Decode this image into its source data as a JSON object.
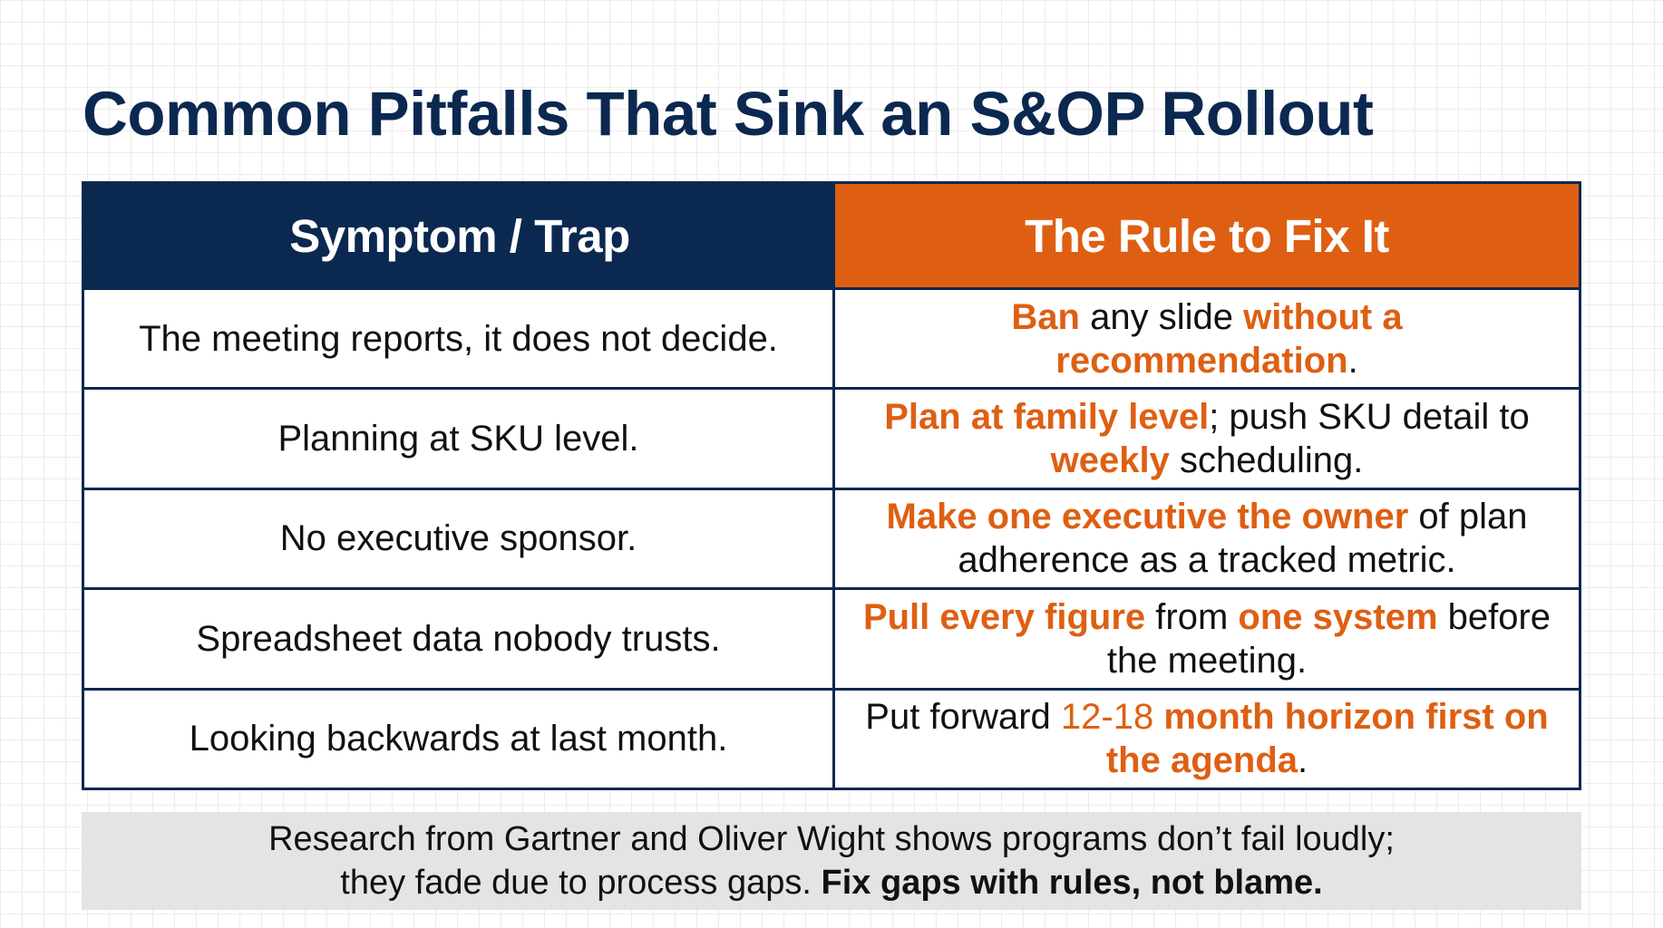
{
  "title": "Common Pitfalls That Sink an S&OP Rollout",
  "colors": {
    "navy": "#0b2850",
    "orange": "#de5f12",
    "note_bg": "#e4e4e4"
  },
  "table": {
    "headers": {
      "symptom": "Symptom / Trap",
      "rule": "The Rule to Fix It"
    },
    "rows": [
      {
        "symptom": "The meeting reports, it does not decide.",
        "rule": [
          {
            "text": "Ban",
            "highlight": true
          },
          {
            "text": " any slide ",
            "highlight": false
          },
          {
            "text": "without a recommendation",
            "highlight": true
          },
          {
            "text": ".",
            "highlight": false
          }
        ]
      },
      {
        "symptom": "Planning at SKU level.",
        "rule": [
          {
            "text": "Plan at family level",
            "highlight": true
          },
          {
            "text": "; push SKU detail to ",
            "highlight": false
          },
          {
            "text": "weekly",
            "highlight": true
          },
          {
            "text": " scheduling.",
            "highlight": false
          }
        ]
      },
      {
        "symptom": "No executive sponsor.",
        "rule": [
          {
            "text": "Make one executive the owner",
            "highlight": true
          },
          {
            "text": " of plan adherence as a tracked metric.",
            "highlight": false
          }
        ]
      },
      {
        "symptom": "Spreadsheet data nobody trusts.",
        "rule": [
          {
            "text": "Pull every figure",
            "highlight": true
          },
          {
            "text": " from ",
            "highlight": false
          },
          {
            "text": "one system",
            "highlight": true
          },
          {
            "text": " before the meeting.",
            "highlight": false
          }
        ]
      },
      {
        "symptom": "Looking backwards at last month.",
        "rule": [
          {
            "text": "Put forward ",
            "highlight": false
          },
          {
            "text": "12-18",
            "highlight": true,
            "weight": "normal"
          },
          {
            "text": " month horizon first on the agenda",
            "highlight": true
          },
          {
            "text": ".",
            "highlight": false
          }
        ]
      }
    ]
  },
  "footnote": {
    "line1": "Research from Gartner and Oliver Wight shows programs don’t fail loudly;",
    "line2_plain": "they fade due to process gaps. ",
    "line2_strong": "Fix gaps with rules, not blame."
  }
}
